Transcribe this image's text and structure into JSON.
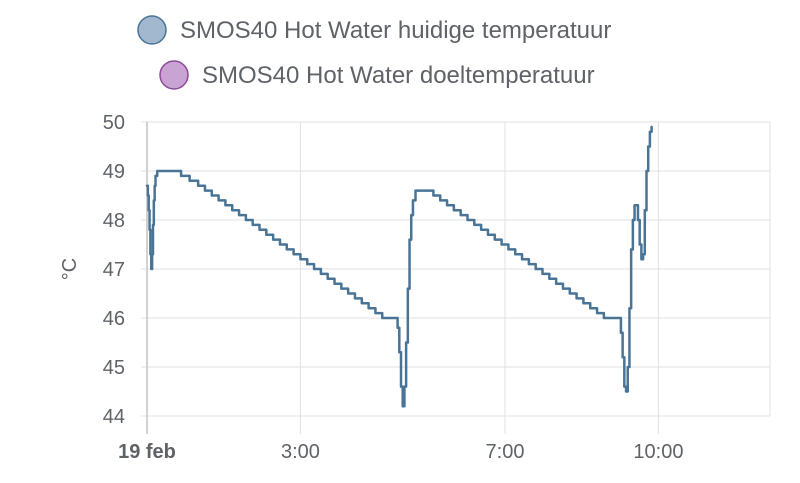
{
  "chart_data": {
    "type": "line",
    "title": "",
    "xlabel": "",
    "ylabel": "°C",
    "ylim": [
      44,
      50
    ],
    "yticks": [
      44,
      45,
      46,
      47,
      48,
      49,
      50
    ],
    "xlim": [
      "0:00",
      "12:00"
    ],
    "xticks": [
      {
        "label": "19 feb",
        "time": "0:00",
        "bold": true
      },
      {
        "label": "3:00",
        "time": "3:00",
        "bold": false
      },
      {
        "label": "7:00",
        "time": "7:00",
        "bold": false
      },
      {
        "label": "10:00",
        "time": "10:00",
        "bold": false
      }
    ],
    "grid": true,
    "legend_position": "top",
    "series": [
      {
        "name": "SMOS40 Hot Water huidige temperatuur",
        "color": "#4a7496",
        "marker_fill": "#a2b8cf",
        "step": true,
        "points": [
          [
            "0:00",
            48.7
          ],
          [
            "0:01",
            48.5
          ],
          [
            "0:02",
            48.2
          ],
          [
            "0:03",
            47.8
          ],
          [
            "0:04",
            47.3
          ],
          [
            "0:05",
            47.0
          ],
          [
            "0:06",
            47.3
          ],
          [
            "0:07",
            47.9
          ],
          [
            "0:08",
            48.4
          ],
          [
            "0:09",
            48.7
          ],
          [
            "0:10",
            48.9
          ],
          [
            "0:12",
            49.0
          ],
          [
            "0:20",
            49.0
          ],
          [
            "0:33",
            49.0
          ],
          [
            "0:40",
            48.9
          ],
          [
            "0:50",
            48.8
          ],
          [
            "1:00",
            48.7
          ],
          [
            "1:08",
            48.6
          ],
          [
            "1:16",
            48.5
          ],
          [
            "1:24",
            48.4
          ],
          [
            "1:32",
            48.3
          ],
          [
            "1:40",
            48.2
          ],
          [
            "1:48",
            48.1
          ],
          [
            "1:56",
            48.0
          ],
          [
            "2:04",
            47.9
          ],
          [
            "2:12",
            47.8
          ],
          [
            "2:20",
            47.7
          ],
          [
            "2:28",
            47.6
          ],
          [
            "2:36",
            47.5
          ],
          [
            "2:44",
            47.4
          ],
          [
            "2:52",
            47.3
          ],
          [
            "3:00",
            47.2
          ],
          [
            "3:08",
            47.1
          ],
          [
            "3:16",
            47.0
          ],
          [
            "3:24",
            46.9
          ],
          [
            "3:32",
            46.8
          ],
          [
            "3:40",
            46.7
          ],
          [
            "3:48",
            46.6
          ],
          [
            "3:56",
            46.5
          ],
          [
            "4:04",
            46.4
          ],
          [
            "4:12",
            46.3
          ],
          [
            "4:20",
            46.2
          ],
          [
            "4:28",
            46.1
          ],
          [
            "4:36",
            46.0
          ],
          [
            "4:48",
            46.0
          ],
          [
            "4:54",
            45.8
          ],
          [
            "4:56",
            45.3
          ],
          [
            "4:58",
            44.6
          ],
          [
            "5:00",
            44.2
          ],
          [
            "5:02",
            44.6
          ],
          [
            "5:04",
            45.5
          ],
          [
            "5:06",
            46.6
          ],
          [
            "5:08",
            47.6
          ],
          [
            "5:10",
            48.1
          ],
          [
            "5:12",
            48.4
          ],
          [
            "5:15",
            48.6
          ],
          [
            "5:20",
            48.6
          ],
          [
            "5:28",
            48.6
          ],
          [
            "5:36",
            48.5
          ],
          [
            "5:44",
            48.4
          ],
          [
            "5:52",
            48.3
          ],
          [
            "6:00",
            48.2
          ],
          [
            "6:08",
            48.1
          ],
          [
            "6:16",
            48.0
          ],
          [
            "6:24",
            47.9
          ],
          [
            "6:32",
            47.8
          ],
          [
            "6:40",
            47.7
          ],
          [
            "6:48",
            47.6
          ],
          [
            "6:56",
            47.5
          ],
          [
            "7:04",
            47.4
          ],
          [
            "7:12",
            47.3
          ],
          [
            "7:20",
            47.2
          ],
          [
            "7:28",
            47.1
          ],
          [
            "7:36",
            47.0
          ],
          [
            "7:44",
            46.9
          ],
          [
            "7:52",
            46.8
          ],
          [
            "8:00",
            46.7
          ],
          [
            "8:08",
            46.6
          ],
          [
            "8:16",
            46.5
          ],
          [
            "8:24",
            46.4
          ],
          [
            "8:32",
            46.3
          ],
          [
            "8:40",
            46.2
          ],
          [
            "8:48",
            46.1
          ],
          [
            "8:56",
            46.0
          ],
          [
            "9:12",
            46.0
          ],
          [
            "9:16",
            45.7
          ],
          [
            "9:18",
            45.2
          ],
          [
            "9:20",
            44.6
          ],
          [
            "9:22",
            44.5
          ],
          [
            "9:24",
            45.0
          ],
          [
            "9:26",
            46.2
          ],
          [
            "9:28",
            47.4
          ],
          [
            "9:30",
            48.0
          ],
          [
            "9:32",
            48.3
          ],
          [
            "9:34",
            48.3
          ],
          [
            "9:36",
            48.0
          ],
          [
            "9:38",
            47.5
          ],
          [
            "9:40",
            47.2
          ],
          [
            "9:42",
            47.3
          ],
          [
            "9:44",
            48.2
          ],
          [
            "9:46",
            49.0
          ],
          [
            "9:48",
            49.5
          ],
          [
            "9:50",
            49.8
          ],
          [
            "9:52",
            49.9
          ]
        ]
      },
      {
        "name": "SMOS40 Hot Water doeltemperatuur",
        "color": "#8e4a9a",
        "marker_fill": "#c8a3d4",
        "points": []
      }
    ]
  }
}
